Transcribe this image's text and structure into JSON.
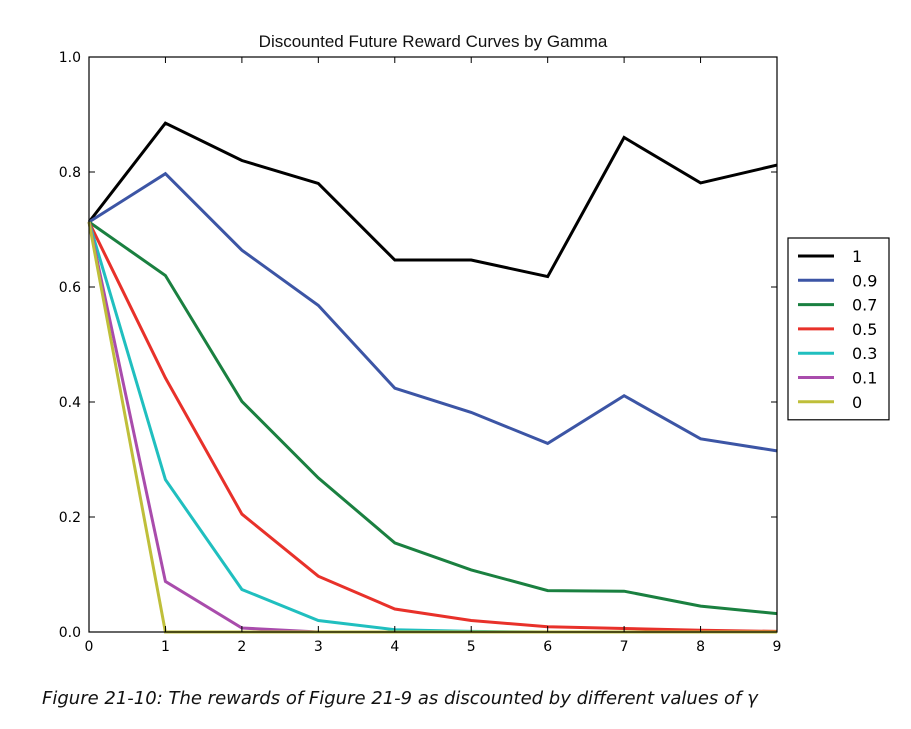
{
  "caption": "Figure 21-10: The rewards of Figure 21-9 as discounted by different values of γ",
  "chart_data": {
    "type": "line",
    "title": "Discounted Future Reward Curves by Gamma",
    "xlabel": "",
    "ylabel": "",
    "xlim": [
      0,
      9
    ],
    "ylim": [
      0,
      1.0
    ],
    "x": [
      0,
      1,
      2,
      3,
      4,
      5,
      6,
      7,
      8,
      9
    ],
    "x_ticks": [
      "0",
      "1",
      "2",
      "3",
      "4",
      "5",
      "6",
      "7",
      "8",
      "9"
    ],
    "y_ticks": [
      {
        "value": 0.0,
        "label": "0.0"
      },
      {
        "value": 0.2,
        "label": "0.2"
      },
      {
        "value": 0.4,
        "label": "0.4"
      },
      {
        "value": 0.6,
        "label": "0.6"
      },
      {
        "value": 0.8,
        "label": "0.8"
      },
      {
        "value": 1.0,
        "label": "1.0"
      }
    ],
    "grid": false,
    "legend_position": "outside-right",
    "series": [
      {
        "name": "1",
        "color": "#000000",
        "values": [
          0.713,
          0.885,
          0.82,
          0.78,
          0.647,
          0.647,
          0.618,
          0.86,
          0.781,
          0.812
        ]
      },
      {
        "name": "0.9",
        "color": "#3c55a5",
        "values": [
          0.713,
          0.797,
          0.664,
          0.568,
          0.424,
          0.382,
          0.328,
          0.411,
          0.336,
          0.315
        ]
      },
      {
        "name": "0.7",
        "color": "#1a8040",
        "values": [
          0.713,
          0.62,
          0.401,
          0.268,
          0.155,
          0.108,
          0.072,
          0.071,
          0.045,
          0.032
        ]
      },
      {
        "name": "0.5",
        "color": "#e8312a",
        "values": [
          0.713,
          0.442,
          0.205,
          0.097,
          0.04,
          0.02,
          0.009,
          0.006,
          0.003,
          0.001
        ]
      },
      {
        "name": "0.3",
        "color": "#20bfbf",
        "values": [
          0.713,
          0.265,
          0.074,
          0.02,
          0.004,
          0.001,
          0.0,
          0.0,
          0.0,
          0.0
        ]
      },
      {
        "name": "0.1",
        "color": "#a94cac",
        "values": [
          0.713,
          0.088,
          0.007,
          0.0,
          0.0,
          0.0,
          0.0,
          0.0,
          0.0,
          0.0
        ]
      },
      {
        "name": "0",
        "color": "#bfbf3a",
        "values": [
          0.713,
          0.0,
          0.0,
          0.0,
          0.0,
          0.0,
          0.0,
          0.0,
          0.0,
          0.0
        ]
      }
    ]
  }
}
